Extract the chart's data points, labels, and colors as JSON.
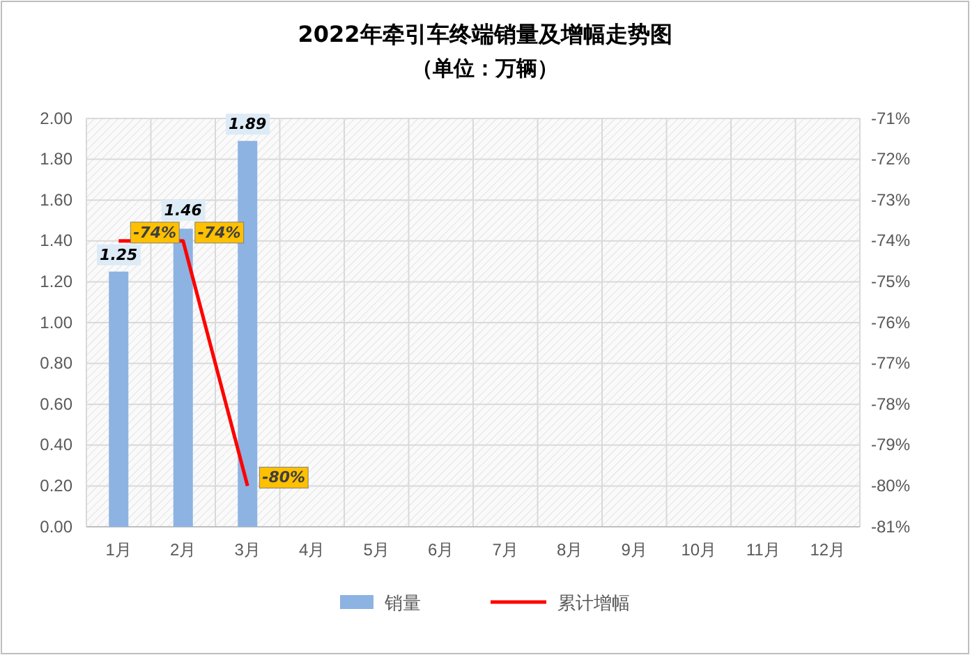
{
  "chart_data": {
    "type": "bar",
    "title": "2022年牵引车终端销量及增幅走势图",
    "subtitle": "（单位：万辆）",
    "categories": [
      "1月",
      "2月",
      "3月",
      "4月",
      "5月",
      "6月",
      "7月",
      "8月",
      "9月",
      "10月",
      "11月",
      "12月"
    ],
    "series": [
      {
        "name": "销量",
        "color": "#8db3e2",
        "values": [
          1.25,
          1.46,
          1.89,
          null,
          null,
          null,
          null,
          null,
          null,
          null,
          null,
          null
        ],
        "value_labels": [
          "1.25",
          "1.46",
          "1.89",
          null,
          null,
          null,
          null,
          null,
          null,
          null,
          null,
          null
        ]
      },
      {
        "name": "累计增幅",
        "type": "line",
        "axis": "y2",
        "color": "#ff0000",
        "values": [
          -74,
          -74,
          -80,
          null,
          null,
          null,
          null,
          null,
          null,
          null,
          null,
          null
        ],
        "value_labels": [
          "-74%",
          "-74%",
          "-80%",
          null,
          null,
          null,
          null,
          null,
          null,
          null,
          null,
          null
        ]
      }
    ],
    "ylim": [
      0,
      2
    ],
    "yticks": [
      {
        "value": 0,
        "label": "0.00"
      },
      {
        "value": 0.2,
        "label": "0.20"
      },
      {
        "value": 0.4,
        "label": "0.40"
      },
      {
        "value": 0.6,
        "label": "0.60"
      },
      {
        "value": 0.8,
        "label": "0.80"
      },
      {
        "value": 1,
        "label": "1.00"
      },
      {
        "value": 1.2,
        "label": "1.20"
      },
      {
        "value": 1.4,
        "label": "1.40"
      },
      {
        "value": 1.6,
        "label": "1.60"
      },
      {
        "value": 1.8,
        "label": "1.80"
      },
      {
        "value": 2,
        "label": "2.00"
      }
    ],
    "y2lim": [
      -81,
      -71
    ],
    "y2ticks": [
      {
        "value": -81,
        "label": "-81%"
      },
      {
        "value": -80,
        "label": "-80%"
      },
      {
        "value": -79,
        "label": "-79%"
      },
      {
        "value": -78,
        "label": "-78%"
      },
      {
        "value": -77,
        "label": "-77%"
      },
      {
        "value": -76,
        "label": "-76%"
      },
      {
        "value": -75,
        "label": "-75%"
      },
      {
        "value": -74,
        "label": "-74%"
      },
      {
        "value": -73,
        "label": "-73%"
      },
      {
        "value": -72,
        "label": "-72%"
      },
      {
        "value": -71,
        "label": "-71%"
      }
    ],
    "grid": true,
    "legend": "bottom"
  }
}
